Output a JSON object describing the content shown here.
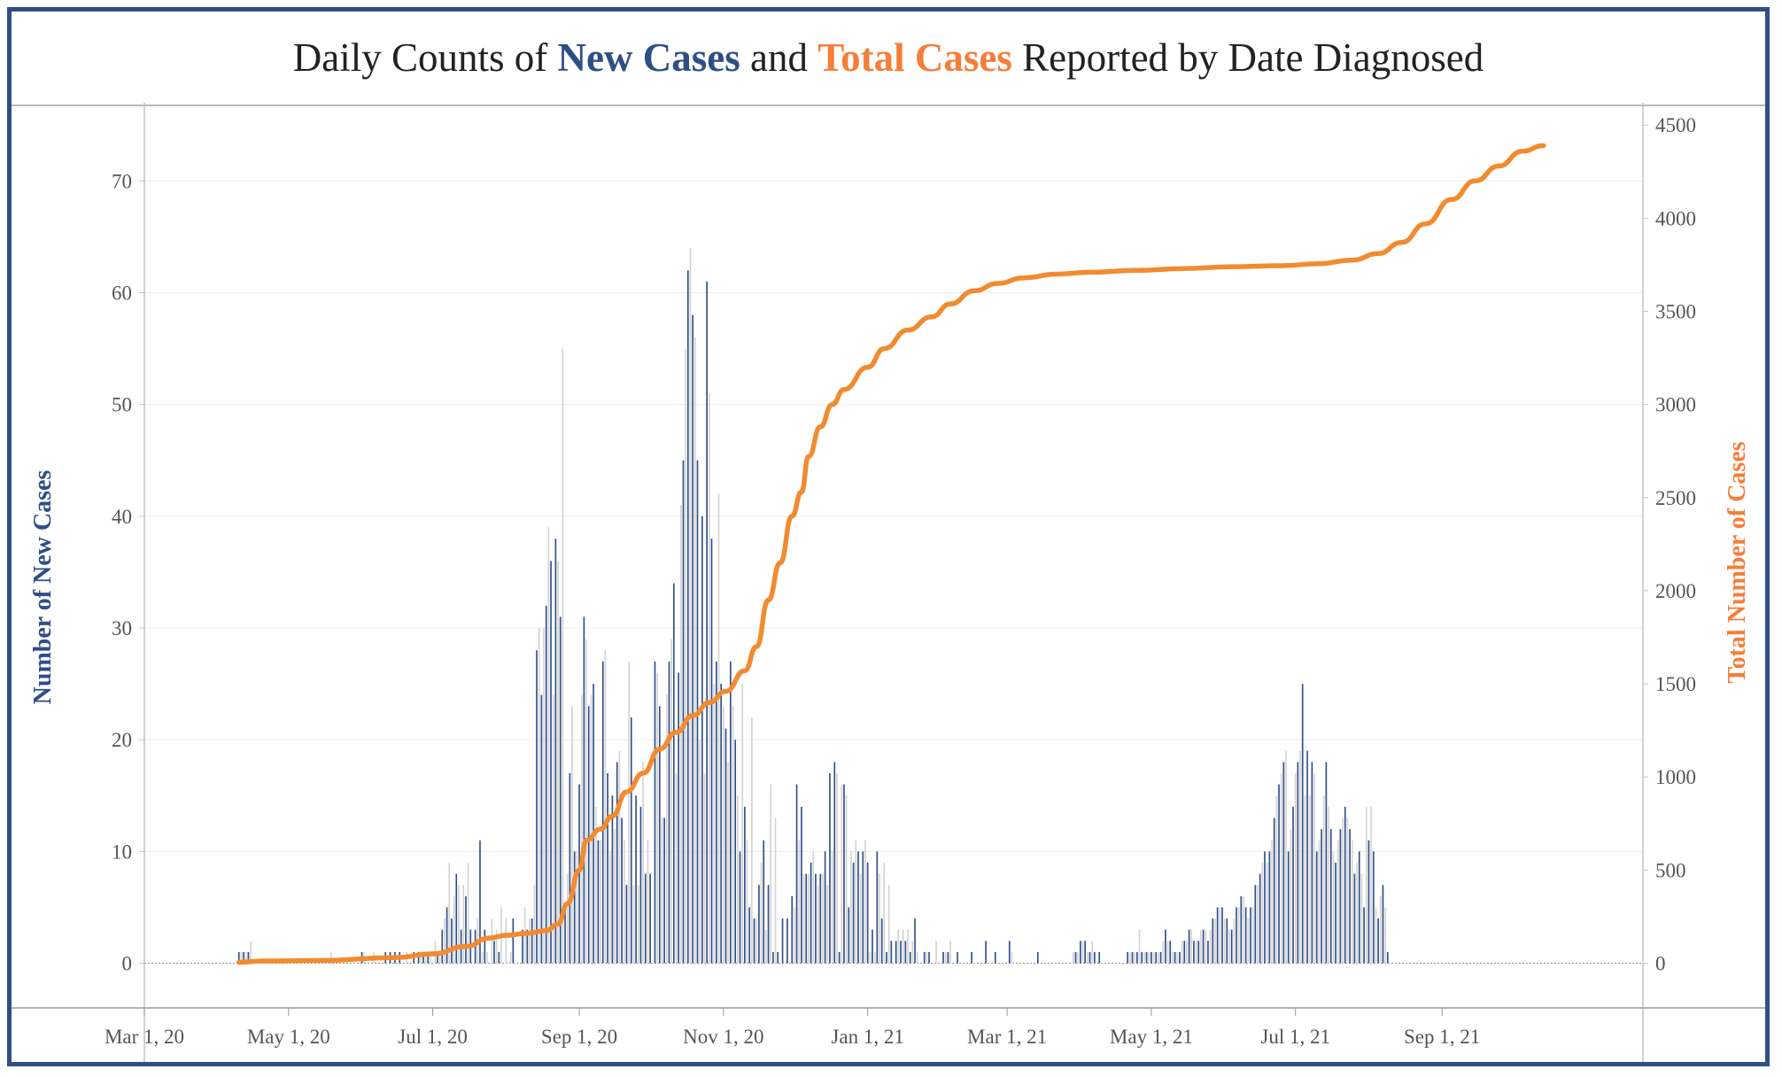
{
  "title": {
    "prefix": "Daily Counts of ",
    "new_cases": "New Cases",
    "middle": " and ",
    "total_cases": "Total Cases",
    "suffix": " Reported by Date Diagnosed"
  },
  "colors": {
    "new_cases_bar": "#2e4f86",
    "alternate_bar": "#d3d3d3",
    "total_line": "#f28b30",
    "frame": "#2e4f86"
  },
  "chart_data": {
    "type": "bar",
    "ylabel": "Number of New Cases",
    "y2label": "Total Number of Cases",
    "ylim": [
      -4,
      77
    ],
    "y2lim": [
      -240,
      4620
    ],
    "yticks": [
      0,
      10,
      20,
      30,
      40,
      50,
      60,
      70
    ],
    "y2ticks": [
      0,
      500,
      1000,
      1500,
      2000,
      2500,
      3000,
      3500,
      4000,
      4500
    ],
    "xticks": [
      "Mar 1, 20",
      "May 1, 20",
      "Jul 1, 20",
      "Sep 1, 20",
      "Nov 1, 20",
      "Jan 1, 21",
      "Mar 1, 21",
      "May 1, 21",
      "Jul 1, 21",
      "Sep 1, 21"
    ],
    "xlim": [
      "2020-03-01",
      "2021-11-25"
    ],
    "grid": true,
    "legend": "none",
    "new_cases": {
      "name": "New Cases",
      "start_date": "2020-04-10",
      "end_date": "2021-10-14",
      "values": [
        1,
        1,
        1,
        1,
        1,
        2,
        0,
        0,
        0,
        0,
        0,
        0,
        0,
        0,
        0,
        0,
        0,
        0,
        0,
        0,
        0,
        0,
        0,
        0,
        0,
        0,
        0,
        0,
        0,
        0,
        0,
        0,
        0,
        0,
        0,
        0,
        0,
        0,
        0,
        1,
        0,
        0,
        0,
        0,
        0,
        0,
        0,
        0,
        0,
        0,
        0,
        0,
        1,
        1,
        0,
        0,
        0,
        1,
        0,
        0,
        0,
        0,
        1,
        0,
        1,
        0,
        1,
        0,
        1,
        0,
        0,
        1,
        0,
        0,
        1,
        0,
        1,
        1,
        1,
        1,
        1,
        1,
        0,
        2,
        1,
        1,
        3,
        4,
        5,
        9,
        4,
        6,
        8,
        7,
        3,
        7,
        6,
        9,
        3,
        0,
        3,
        4,
        11,
        1,
        3,
        1,
        0,
        4,
        2,
        3,
        1,
        5,
        0,
        4,
        0,
        1,
        4,
        0,
        0,
        0,
        3,
        5,
        3,
        4,
        4,
        7,
        28,
        30,
        24,
        30,
        32,
        39,
        36,
        24,
        38,
        36,
        31,
        55,
        5,
        8,
        17,
        23,
        10,
        10,
        16,
        24,
        31,
        29,
        23,
        24,
        25,
        14,
        11,
        11,
        27,
        28,
        17,
        10,
        15,
        12,
        18,
        19,
        13,
        11,
        7,
        27,
        22,
        7,
        15,
        7,
        14,
        18,
        8,
        11,
        8,
        0,
        27,
        26,
        23,
        13,
        13,
        24,
        27,
        29,
        34,
        17,
        26,
        41,
        45,
        55,
        62,
        64,
        58,
        56,
        45,
        20,
        40,
        17,
        61,
        51,
        38,
        25,
        27,
        42,
        25,
        23,
        21,
        18,
        27,
        23,
        20,
        15,
        10,
        25,
        14,
        11,
        5,
        22,
        4,
        4,
        7,
        9,
        11,
        3,
        7,
        16,
        1,
        13,
        1,
        0,
        4,
        0,
        4,
        0,
        6,
        5,
        16,
        11,
        14,
        8,
        8,
        8,
        9,
        10,
        8,
        7,
        8,
        8,
        10,
        7,
        17,
        10,
        18,
        17,
        1,
        16,
        16,
        15,
        5,
        10,
        9,
        11,
        10,
        8,
        10,
        11,
        9,
        1,
        3,
        1,
        10,
        8,
        4,
        9,
        1,
        7,
        2,
        0,
        2,
        3,
        2,
        3,
        2,
        3,
        1,
        2,
        4,
        1,
        0,
        0,
        1,
        1,
        1,
        0,
        0,
        2,
        0,
        0,
        1,
        1,
        1,
        2,
        0,
        0,
        1,
        0,
        0,
        0,
        0,
        0,
        1,
        0,
        0,
        0,
        0,
        0,
        2,
        0,
        0,
        0,
        1,
        0,
        0,
        0,
        0,
        0,
        2,
        1,
        0,
        0,
        0,
        0,
        0,
        0,
        0,
        0,
        0,
        0,
        1,
        0,
        0,
        0,
        0,
        0,
        0,
        0,
        0,
        0,
        0,
        0,
        0,
        0,
        0,
        1,
        1,
        1,
        2,
        2,
        2,
        1,
        1,
        2,
        1,
        0,
        1,
        0,
        0,
        0,
        0,
        0,
        0,
        0,
        0,
        0,
        0,
        0,
        1,
        1,
        1,
        1,
        1,
        3,
        1,
        1,
        1,
        1,
        1,
        1,
        1,
        1,
        1,
        2,
        3,
        2,
        2,
        1,
        1,
        1,
        1,
        2,
        2,
        2,
        3,
        3,
        2,
        2,
        2,
        3,
        3,
        3,
        2,
        3,
        4,
        4,
        5,
        5,
        5,
        4,
        4,
        3,
        3,
        4,
        5,
        5,
        6,
        6,
        5,
        4,
        5,
        5,
        7,
        7,
        8,
        9,
        10,
        9,
        10,
        11,
        13,
        15,
        16,
        17,
        18,
        19,
        10,
        12,
        14,
        17,
        18,
        19,
        25,
        15,
        19,
        15,
        18,
        17,
        10,
        11,
        12,
        15,
        18,
        14,
        12,
        10,
        9,
        11,
        12,
        13,
        14,
        13,
        12,
        11,
        8,
        9,
        10,
        8,
        5,
        14,
        11,
        14,
        10,
        5,
        4,
        6,
        7,
        5,
        1
      ]
    },
    "total_cases": {
      "name": "Total Cases",
      "points": [
        [
          "2020-04-10",
          5
        ],
        [
          "2020-04-20",
          12
        ],
        [
          "2020-05-15",
          15
        ],
        [
          "2020-06-15",
          30
        ],
        [
          "2020-07-01",
          50
        ],
        [
          "2020-07-15",
          90
        ],
        [
          "2020-07-25",
          135
        ],
        [
          "2020-08-01",
          150
        ],
        [
          "2020-08-10",
          160
        ],
        [
          "2020-08-18",
          175
        ],
        [
          "2020-08-23",
          210
        ],
        [
          "2020-08-27",
          320
        ],
        [
          "2020-09-01",
          500
        ],
        [
          "2020-09-04",
          660
        ],
        [
          "2020-09-10",
          720
        ],
        [
          "2020-09-15",
          790
        ],
        [
          "2020-09-21",
          920
        ],
        [
          "2020-09-28",
          1020
        ],
        [
          "2020-10-05",
          1150
        ],
        [
          "2020-10-12",
          1240
        ],
        [
          "2020-10-19",
          1330
        ],
        [
          "2020-10-26",
          1400
        ],
        [
          "2020-11-02",
          1460
        ],
        [
          "2020-11-10",
          1570
        ],
        [
          "2020-11-15",
          1700
        ],
        [
          "2020-11-20",
          1950
        ],
        [
          "2020-11-25",
          2150
        ],
        [
          "2020-11-30",
          2400
        ],
        [
          "2020-12-04",
          2530
        ],
        [
          "2020-12-07",
          2720
        ],
        [
          "2020-12-12",
          2880
        ],
        [
          "2020-12-17",
          3000
        ],
        [
          "2020-12-22",
          3080
        ],
        [
          "2021-01-01",
          3200
        ],
        [
          "2021-01-08",
          3300
        ],
        [
          "2021-01-18",
          3400
        ],
        [
          "2021-01-28",
          3470
        ],
        [
          "2021-02-05",
          3540
        ],
        [
          "2021-02-15",
          3610
        ],
        [
          "2021-02-25",
          3650
        ],
        [
          "2021-03-08",
          3680
        ],
        [
          "2021-03-22",
          3700
        ],
        [
          "2021-04-05",
          3710
        ],
        [
          "2021-04-25",
          3720
        ],
        [
          "2021-05-15",
          3730
        ],
        [
          "2021-06-05",
          3740
        ],
        [
          "2021-06-25",
          3745
        ],
        [
          "2021-07-10",
          3755
        ],
        [
          "2021-07-25",
          3775
        ],
        [
          "2021-08-05",
          3810
        ],
        [
          "2021-08-15",
          3870
        ],
        [
          "2021-08-25",
          3970
        ],
        [
          "2021-09-05",
          4100
        ],
        [
          "2021-09-15",
          4200
        ],
        [
          "2021-09-25",
          4280
        ],
        [
          "2021-10-05",
          4360
        ],
        [
          "2021-10-14",
          4390
        ]
      ]
    }
  }
}
